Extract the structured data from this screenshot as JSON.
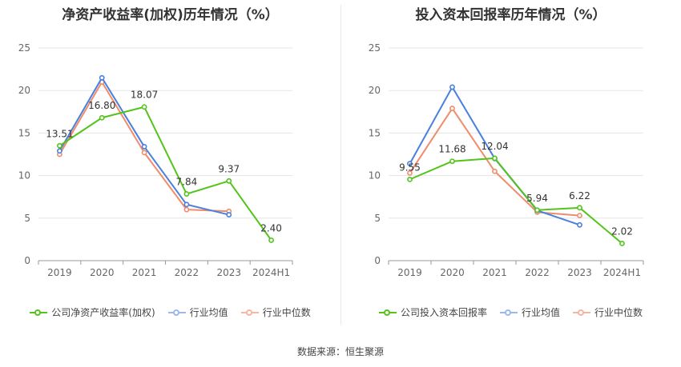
{
  "chart_data": [
    {
      "type": "line",
      "title": "净资产收益率(加权)历年情况（%）",
      "categories": [
        "2019",
        "2020",
        "2021",
        "2022",
        "2023",
        "2024H1"
      ],
      "ylim": [
        0,
        25
      ],
      "yticks": [
        0,
        5,
        10,
        15,
        20,
        25
      ],
      "grid": true,
      "legend_position": "bottom",
      "series": [
        {
          "name": "公司净资产收益率(加权)",
          "color": "#52c41a",
          "values": [
            13.51,
            16.8,
            18.07,
            7.84,
            9.37,
            2.4
          ],
          "labels": [
            "13.51",
            "16.80",
            "18.07",
            "7.84",
            "9.37",
            "2.40"
          ]
        },
        {
          "name": "行业均值",
          "color": "#4a7fe0",
          "values": [
            12.9,
            21.5,
            13.4,
            6.6,
            5.4,
            null
          ]
        },
        {
          "name": "行业中位数",
          "color": "#f08c6a",
          "values": [
            12.5,
            21.0,
            12.7,
            6.0,
            5.8,
            null
          ]
        }
      ]
    },
    {
      "type": "line",
      "title": "投入资本回报率历年情况（%）",
      "categories": [
        "2019",
        "2020",
        "2021",
        "2022",
        "2023",
        "2024H1"
      ],
      "ylim": [
        0,
        25
      ],
      "yticks": [
        0,
        5,
        10,
        15,
        20,
        25
      ],
      "grid": true,
      "legend_position": "bottom",
      "series": [
        {
          "name": "公司投入资本回报率",
          "color": "#52c41a",
          "values": [
            9.55,
            11.68,
            12.04,
            5.94,
            6.22,
            2.02
          ],
          "labels": [
            "9.55",
            "11.68",
            "12.04",
            "5.94",
            "6.22",
            "2.02"
          ]
        },
        {
          "name": "行业均值",
          "color": "#4a7fe0",
          "values": [
            11.4,
            20.4,
            12.0,
            5.9,
            4.2,
            null
          ]
        },
        {
          "name": "行业中位数",
          "color": "#f08c6a",
          "values": [
            10.3,
            17.9,
            10.5,
            5.7,
            5.3,
            null
          ]
        }
      ]
    }
  ],
  "footer": {
    "source": "数据来源：恒生聚源"
  }
}
